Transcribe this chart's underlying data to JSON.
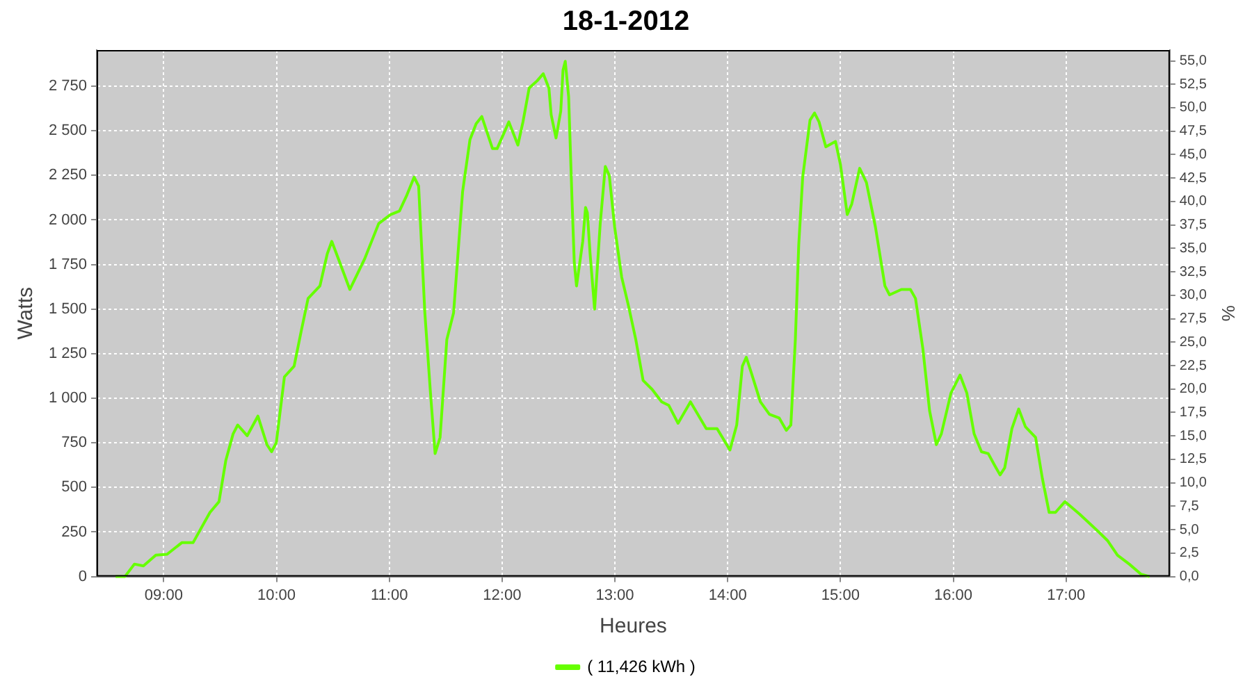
{
  "chart_data": {
    "type": "line",
    "title": "18-1-2012",
    "xlabel": "Heures",
    "ylabel": "Watts",
    "y2label": "%",
    "xlim": [
      8.406,
      17.92
    ],
    "xticks": [
      {
        "value": 9,
        "label": "09:00"
      },
      {
        "value": 10,
        "label": "10:00"
      },
      {
        "value": 11,
        "label": "11:00"
      },
      {
        "value": 12,
        "label": "12:00"
      },
      {
        "value": 13,
        "label": "13:00"
      },
      {
        "value": 14,
        "label": "14:00"
      },
      {
        "value": 15,
        "label": "15:00"
      },
      {
        "value": 16,
        "label": "16:00"
      },
      {
        "value": 17,
        "label": "17:00"
      }
    ],
    "ylim": [
      0,
      2953
    ],
    "yticks": [
      0,
      250,
      500,
      750,
      {
        "value": 1000,
        "label": "1 000"
      },
      {
        "value": 1250,
        "label": "1 250"
      },
      {
        "value": 1500,
        "label": "1 500"
      },
      {
        "value": 1750,
        "label": "1 750"
      },
      {
        "value": 2000,
        "label": "2 000"
      },
      {
        "value": 2250,
        "label": "2 250"
      },
      {
        "value": 2500,
        "label": "2 500"
      },
      {
        "value": 2750,
        "label": "2 750"
      }
    ],
    "y2lim": [
      0,
      56.15
    ],
    "y2ticks": [
      {
        "value": 0,
        "label": "0,0"
      },
      {
        "value": 2.5,
        "label": "2,5"
      },
      {
        "value": 5,
        "label": "5,0"
      },
      {
        "value": 7.5,
        "label": "7,5"
      },
      {
        "value": 10,
        "label": "10,0"
      },
      {
        "value": 12.5,
        "label": "12,5"
      },
      {
        "value": 15,
        "label": "15,0"
      },
      {
        "value": 17.5,
        "label": "17,5"
      },
      {
        "value": 20,
        "label": "20,0"
      },
      {
        "value": 22.5,
        "label": "22,5"
      },
      {
        "value": 25,
        "label": "25,0"
      },
      {
        "value": 27.5,
        "label": "27,5"
      },
      {
        "value": 30,
        "label": "30,0"
      },
      {
        "value": 32.5,
        "label": "32,5"
      },
      {
        "value": 35,
        "label": "35,0"
      },
      {
        "value": 37.5,
        "label": "37,5"
      },
      {
        "value": 40,
        "label": "40,0"
      },
      {
        "value": 42.5,
        "label": "42,5"
      },
      {
        "value": 45,
        "label": "45,0"
      },
      {
        "value": 47.5,
        "label": "47,5"
      },
      {
        "value": 50,
        "label": "50,0"
      },
      {
        "value": 52.5,
        "label": "52,5"
      },
      {
        "value": 55,
        "label": "55,0"
      }
    ],
    "grid": true,
    "legend": "bottom",
    "marker": "none",
    "line_style": "solid",
    "series": [
      {
        "name": "( 11,426 kWh )",
        "color": "#66ff00",
        "x": [
          8.573,
          8.656,
          8.74,
          8.82,
          8.93,
          9.03,
          9.16,
          9.26,
          9.41,
          9.49,
          9.55,
          9.615,
          9.656,
          9.74,
          9.835,
          9.915,
          9.956,
          9.998,
          10.07,
          10.156,
          10.22,
          10.28,
          10.385,
          10.45,
          10.49,
          10.55,
          10.65,
          10.78,
          10.906,
          11.01,
          11.09,
          11.156,
          11.22,
          11.26,
          11.315,
          11.365,
          11.406,
          11.45,
          11.51,
          11.57,
          11.65,
          11.715,
          11.77,
          11.82,
          11.915,
          11.956,
          12.06,
          12.14,
          12.185,
          12.24,
          12.31,
          12.365,
          12.415,
          12.435,
          12.478,
          12.52,
          12.54,
          12.56,
          12.59,
          12.62,
          12.64,
          12.66,
          12.715,
          12.74,
          12.756,
          12.78,
          12.81,
          12.82,
          12.87,
          12.915,
          12.95,
          12.998,
          13.06,
          13.12,
          13.185,
          13.25,
          13.33,
          13.415,
          13.478,
          13.56,
          13.67,
          13.81,
          13.906,
          14.02,
          14.08,
          14.13,
          14.165,
          14.206,
          14.29,
          14.37,
          14.456,
          14.52,
          14.56,
          14.6,
          14.63,
          14.665,
          14.73,
          14.77,
          14.81,
          14.87,
          14.956,
          15.0,
          15.06,
          15.1,
          15.17,
          15.23,
          15.31,
          15.394,
          15.435,
          15.54,
          15.62,
          15.665,
          15.73,
          15.79,
          15.85,
          15.894,
          15.98,
          16.06,
          16.12,
          16.185,
          16.25,
          16.31,
          16.37,
          16.415,
          16.456,
          16.52,
          16.58,
          16.64,
          16.73,
          16.79,
          16.85,
          16.906,
          16.99,
          17.12,
          17.29,
          17.37,
          17.456,
          17.56,
          17.665,
          17.74
        ],
        "values": [
          0,
          0,
          70,
          60,
          120,
          125,
          190,
          190,
          360,
          420,
          650,
          800,
          850,
          790,
          900,
          740,
          700,
          750,
          1120,
          1180,
          1380,
          1560,
          1630,
          1810,
          1880,
          1780,
          1610,
          1780,
          1980,
          2030,
          2050,
          2140,
          2240,
          2190,
          1480,
          1030,
          690,
          780,
          1330,
          1480,
          2160,
          2450,
          2540,
          2580,
          2400,
          2400,
          2550,
          2420,
          2550,
          2740,
          2780,
          2820,
          2740,
          2590,
          2460,
          2610,
          2840,
          2890,
          2690,
          2110,
          1760,
          1630,
          1880,
          2070,
          2040,
          1810,
          1580,
          1500,
          1980,
          2300,
          2250,
          1960,
          1680,
          1520,
          1330,
          1100,
          1050,
          980,
          960,
          860,
          980,
          830,
          830,
          710,
          850,
          1180,
          1230,
          1150,
          980,
          910,
          890,
          820,
          850,
          1330,
          1860,
          2240,
          2560,
          2600,
          2550,
          2410,
          2440,
          2310,
          2030,
          2090,
          2290,
          2210,
          1960,
          1630,
          1580,
          1610,
          1610,
          1560,
          1280,
          930,
          740,
          800,
          1030,
          1130,
          1030,
          800,
          700,
          690,
          620,
          570,
          610,
          830,
          940,
          840,
          780,
          550,
          360,
          360,
          420,
          350,
          250,
          200,
          120,
          70,
          13,
          0
        ]
      }
    ]
  }
}
